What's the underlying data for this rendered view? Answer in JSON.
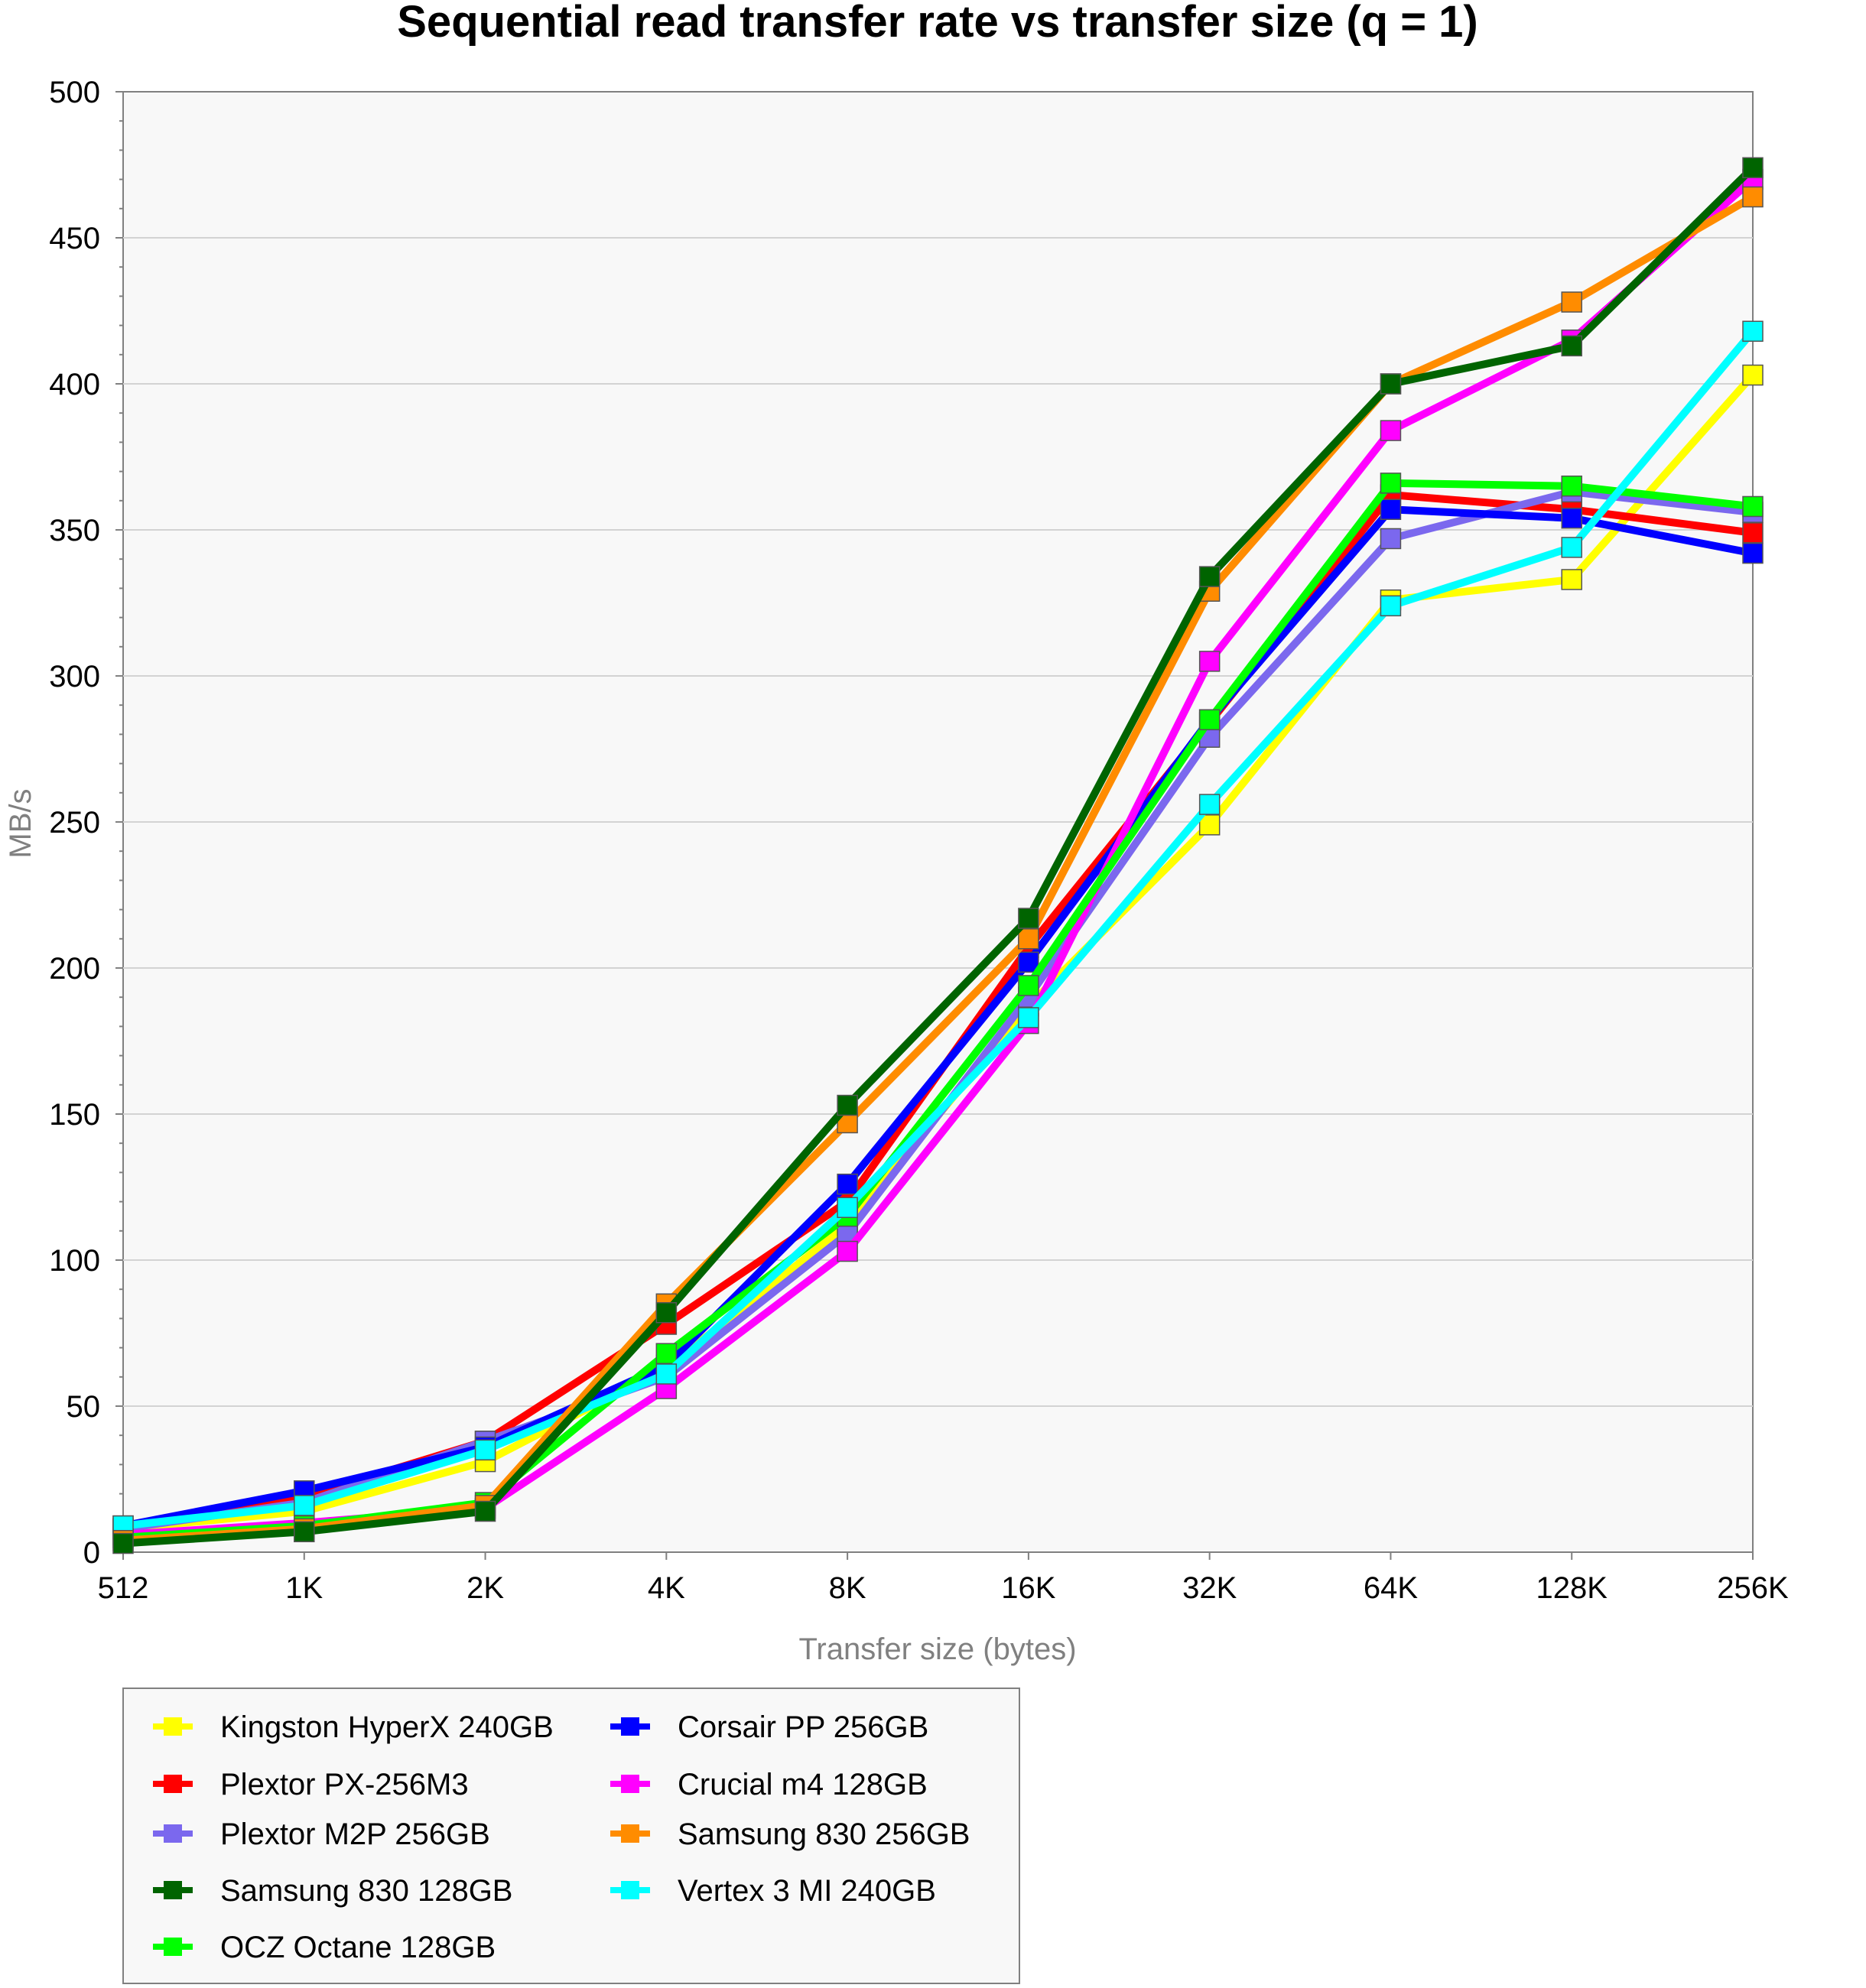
{
  "chart_data": {
    "type": "line",
    "title": "Sequential read transfer rate vs transfer size (q = 1)",
    "xlabel": "Transfer size (bytes)",
    "ylabel": "MB/s",
    "categories": [
      "512",
      "1K",
      "2K",
      "4K",
      "8K",
      "16K",
      "32K",
      "64K",
      "128K",
      "256K"
    ],
    "ylim": [
      0,
      500
    ],
    "yticks": [
      0,
      50,
      100,
      150,
      200,
      250,
      300,
      350,
      400,
      450,
      500
    ],
    "grid": true,
    "legend_position": "bottom-left",
    "series": [
      {
        "name": "Kingston HyperX 240GB",
        "color": "#ffff00",
        "values": [
          8,
          14,
          31,
          63,
          112,
          187,
          249,
          326,
          333,
          403
        ]
      },
      {
        "name": "Plextor PX-256M3",
        "color": "#ff0000",
        "values": [
          8,
          19,
          38,
          78,
          120,
          207,
          284,
          362,
          357,
          349
        ]
      },
      {
        "name": "Plextor M2P 256GB",
        "color": "#7b68ee",
        "values": [
          8,
          17,
          38,
          60,
          109,
          190,
          279,
          347,
          363,
          356
        ]
      },
      {
        "name": "Samsung 830 128GB",
        "color": "#006400",
        "values": [
          3,
          7,
          14,
          82,
          153,
          217,
          334,
          400,
          413,
          474
        ]
      },
      {
        "name": "OCZ Octane 128GB",
        "color": "#00ff00",
        "values": [
          5,
          9,
          17,
          68,
          115,
          194,
          285,
          366,
          365,
          358
        ]
      },
      {
        "name": "Corsair PP 256GB",
        "color": "#0000ff",
        "values": [
          9,
          21,
          36,
          64,
          126,
          202,
          285,
          357,
          354,
          342
        ]
      },
      {
        "name": "Crucial m4 128GB",
        "color": "#ff00ff",
        "values": [
          6,
          10,
          15,
          56,
          103,
          181,
          305,
          384,
          415,
          470
        ]
      },
      {
        "name": "Samsung 830 256GB",
        "color": "#ff8c00",
        "values": [
          4,
          8,
          16,
          85,
          147,
          210,
          329,
          400,
          428,
          464
        ]
      },
      {
        "name": "Vertex 3 MI 240GB",
        "color": "#00ffff",
        "values": [
          9,
          16,
          35,
          61,
          118,
          183,
          256,
          324,
          344,
          418
        ]
      }
    ]
  },
  "colors": {
    "plot_background": "#f8f8f8",
    "grid": "#d3d3d3",
    "axis": "#808080",
    "legend_background": "#f8f8f8",
    "legend_border": "#808080"
  }
}
